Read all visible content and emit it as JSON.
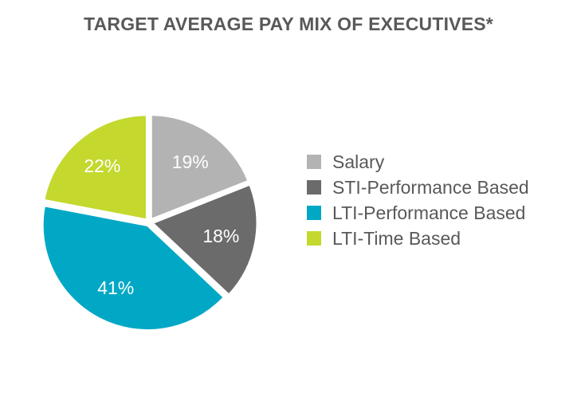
{
  "chart_data": {
    "type": "pie",
    "title": "TARGET AVERAGE PAY MIX OF EXECUTIVES*",
    "slices": [
      {
        "label": "Salary",
        "value": 19,
        "value_label": "19%",
        "color": "#b3b3b3"
      },
      {
        "label": "STI-Performance Based",
        "value": 18,
        "value_label": "18%",
        "color": "#6b6b6b"
      },
      {
        "label": "LTI-Performance Based",
        "value": 41,
        "value_label": "41%",
        "color": "#00a8c5"
      },
      {
        "label": "LTI-Time Based",
        "value": 22,
        "value_label": "22%",
        "color": "#c4d82e"
      }
    ],
    "legend_position": "right",
    "start_angle": "12 o'clock",
    "direction": "clockwise"
  }
}
